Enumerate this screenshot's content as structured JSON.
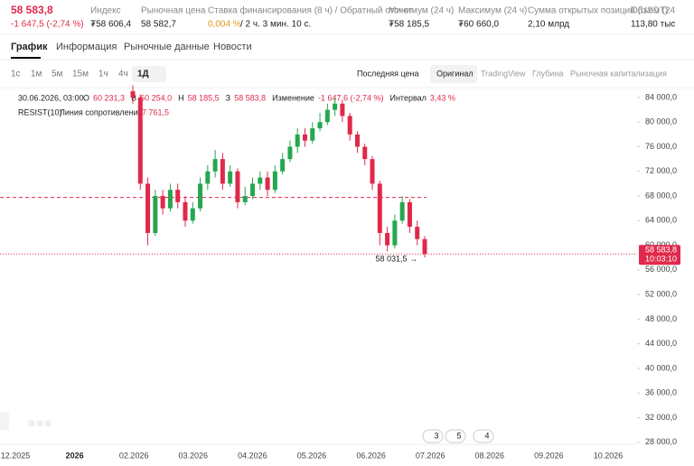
{
  "header": {
    "price": "58 583,8",
    "change": "-1 647,5 (-2,74 %)",
    "stats": [
      {
        "label": "Индекс",
        "value": "₮58 606,4"
      },
      {
        "label": "Рыночная цена",
        "value": "58 582,7"
      },
      {
        "label": "Ставка финансирования (8 ч) / Обратный отсчет",
        "value": "0,004 %",
        "extra": "/ 2 ч. 3 мин. 10 с."
      },
      {
        "label": "Минимум (24 ч)",
        "value": "₮58 185,5"
      },
      {
        "label": "Максимум (24 ч)",
        "value": "₮60 660,0"
      },
      {
        "label": "Сумма открытых позиций (USDT)",
        "value": "2,10 млрд"
      },
      {
        "label": "Объем (24",
        "value": "113,80 тыс"
      }
    ]
  },
  "tabs": [
    "График",
    "Информация",
    "Рыночные данные",
    "Новости"
  ],
  "toolbar": {
    "intervals": [
      "1с",
      "1м",
      "5м",
      "15м",
      "1ч",
      "4ч",
      "1Д"
    ],
    "price_type": "Последняя цена",
    "views": [
      "Оригинал",
      "TradingView",
      "Глубина",
      "Рыночная капитализация"
    ]
  },
  "legend": {
    "date": "30.06.2026, 03:00",
    "items": [
      [
        "O",
        "60 231,3"
      ],
      [
        "В",
        "60 254,0"
      ],
      [
        "Н",
        "58 185,5"
      ],
      [
        "З",
        "58 583,8"
      ],
      [
        "Изменение",
        "-1 647,6 (-2,74 %)"
      ],
      [
        "Интервал",
        "3,43 %"
      ]
    ]
  },
  "badges": [
    "3",
    "5",
    "4"
  ],
  "chart_data": {
    "type": "candlestick",
    "up_color": "#25a750",
    "down_color": "#e0294a",
    "open": [
      85000,
      84000,
      70000,
      62000,
      68000,
      66000,
      69000,
      67000,
      64000,
      66000,
      70000,
      72000,
      74000,
      70000,
      72000,
      67000,
      68000,
      70000,
      71000,
      69000,
      72000,
      74000,
      76000,
      78000,
      77000,
      79000,
      80000,
      82000,
      83000,
      81000,
      78000,
      76000,
      74000,
      70000,
      62000,
      60000,
      64000,
      67000,
      63000,
      61000
    ],
    "high": [
      86000,
      84500,
      71000,
      69000,
      69000,
      70000,
      70000,
      68000,
      67000,
      71000,
      73000,
      75500,
      75000,
      73000,
      72500,
      69500,
      71000,
      72000,
      72000,
      73000,
      75000,
      77000,
      79000,
      79000,
      80000,
      81500,
      83000,
      84000,
      83500,
      81500,
      78500,
      76500,
      74500,
      70500,
      63000,
      65000,
      68000,
      67500,
      64000,
      61500
    ],
    "low": [
      83000,
      69000,
      60000,
      61500,
      65000,
      65500,
      66000,
      63000,
      63500,
      65500,
      69000,
      71000,
      69000,
      69500,
      66000,
      66500,
      67500,
      69000,
      68000,
      68500,
      71500,
      73500,
      75000,
      76000,
      76500,
      78500,
      79500,
      81000,
      80000,
      77000,
      75000,
      73000,
      69000,
      60000,
      59000,
      59500,
      63500,
      62000,
      60000,
      58031.5
    ],
    "close": [
      84000,
      70000,
      62000,
      68000,
      66000,
      69000,
      67000,
      64000,
      66000,
      70000,
      72000,
      74000,
      70000,
      72000,
      67000,
      68000,
      70000,
      71000,
      69000,
      72000,
      74000,
      76000,
      78000,
      77000,
      79000,
      80000,
      82000,
      83000,
      81000,
      78000,
      76000,
      74000,
      70000,
      62000,
      60000,
      64000,
      67000,
      63000,
      61000,
      58583.8
    ],
    "ylim": [
      26500,
      85900
    ],
    "yticks": [
      {
        "value": 28000,
        "label": "28 000,0"
      },
      {
        "value": 32000,
        "label": "32 000,0"
      },
      {
        "value": 36000,
        "label": "36 000,0"
      },
      {
        "value": 40000,
        "label": "40 000,0"
      },
      {
        "value": 44000,
        "label": "44 000,0"
      },
      {
        "value": 48000,
        "label": "48 000,0"
      },
      {
        "value": 52000,
        "label": "52 000,0"
      },
      {
        "value": 56000,
        "label": "56 000,0"
      },
      {
        "value": 60000,
        "label": "60 000,0"
      },
      {
        "value": 64000,
        "label": "64 000,0"
      },
      {
        "value": 68000,
        "label": "68 000,0"
      },
      {
        "value": 72000,
        "label": "72 000,0"
      },
      {
        "value": 76000,
        "label": "76 000,0"
      },
      {
        "value": 80000,
        "label": "80 000,0"
      },
      {
        "value": 84000,
        "label": "84 000,0"
      }
    ],
    "xticks": [
      "12.2025",
      "2026",
      "02.2026",
      "03.2026",
      "04.2026",
      "05.2026",
      "06.2026",
      "07.2026",
      "08.2026",
      "09.2026",
      "10.2026"
    ],
    "resistance": {
      "name": "RESIST(10)",
      "label": "Линия сопротивления",
      "value": 67761.5,
      "value_label": "67 761,5",
      "color": "#e0294a"
    },
    "last_price": {
      "value": 58583.8,
      "label": "58 583,8",
      "time": "10:03:10"
    },
    "low_marker": {
      "value": 58031.5,
      "label": "58 031,5 →"
    }
  }
}
